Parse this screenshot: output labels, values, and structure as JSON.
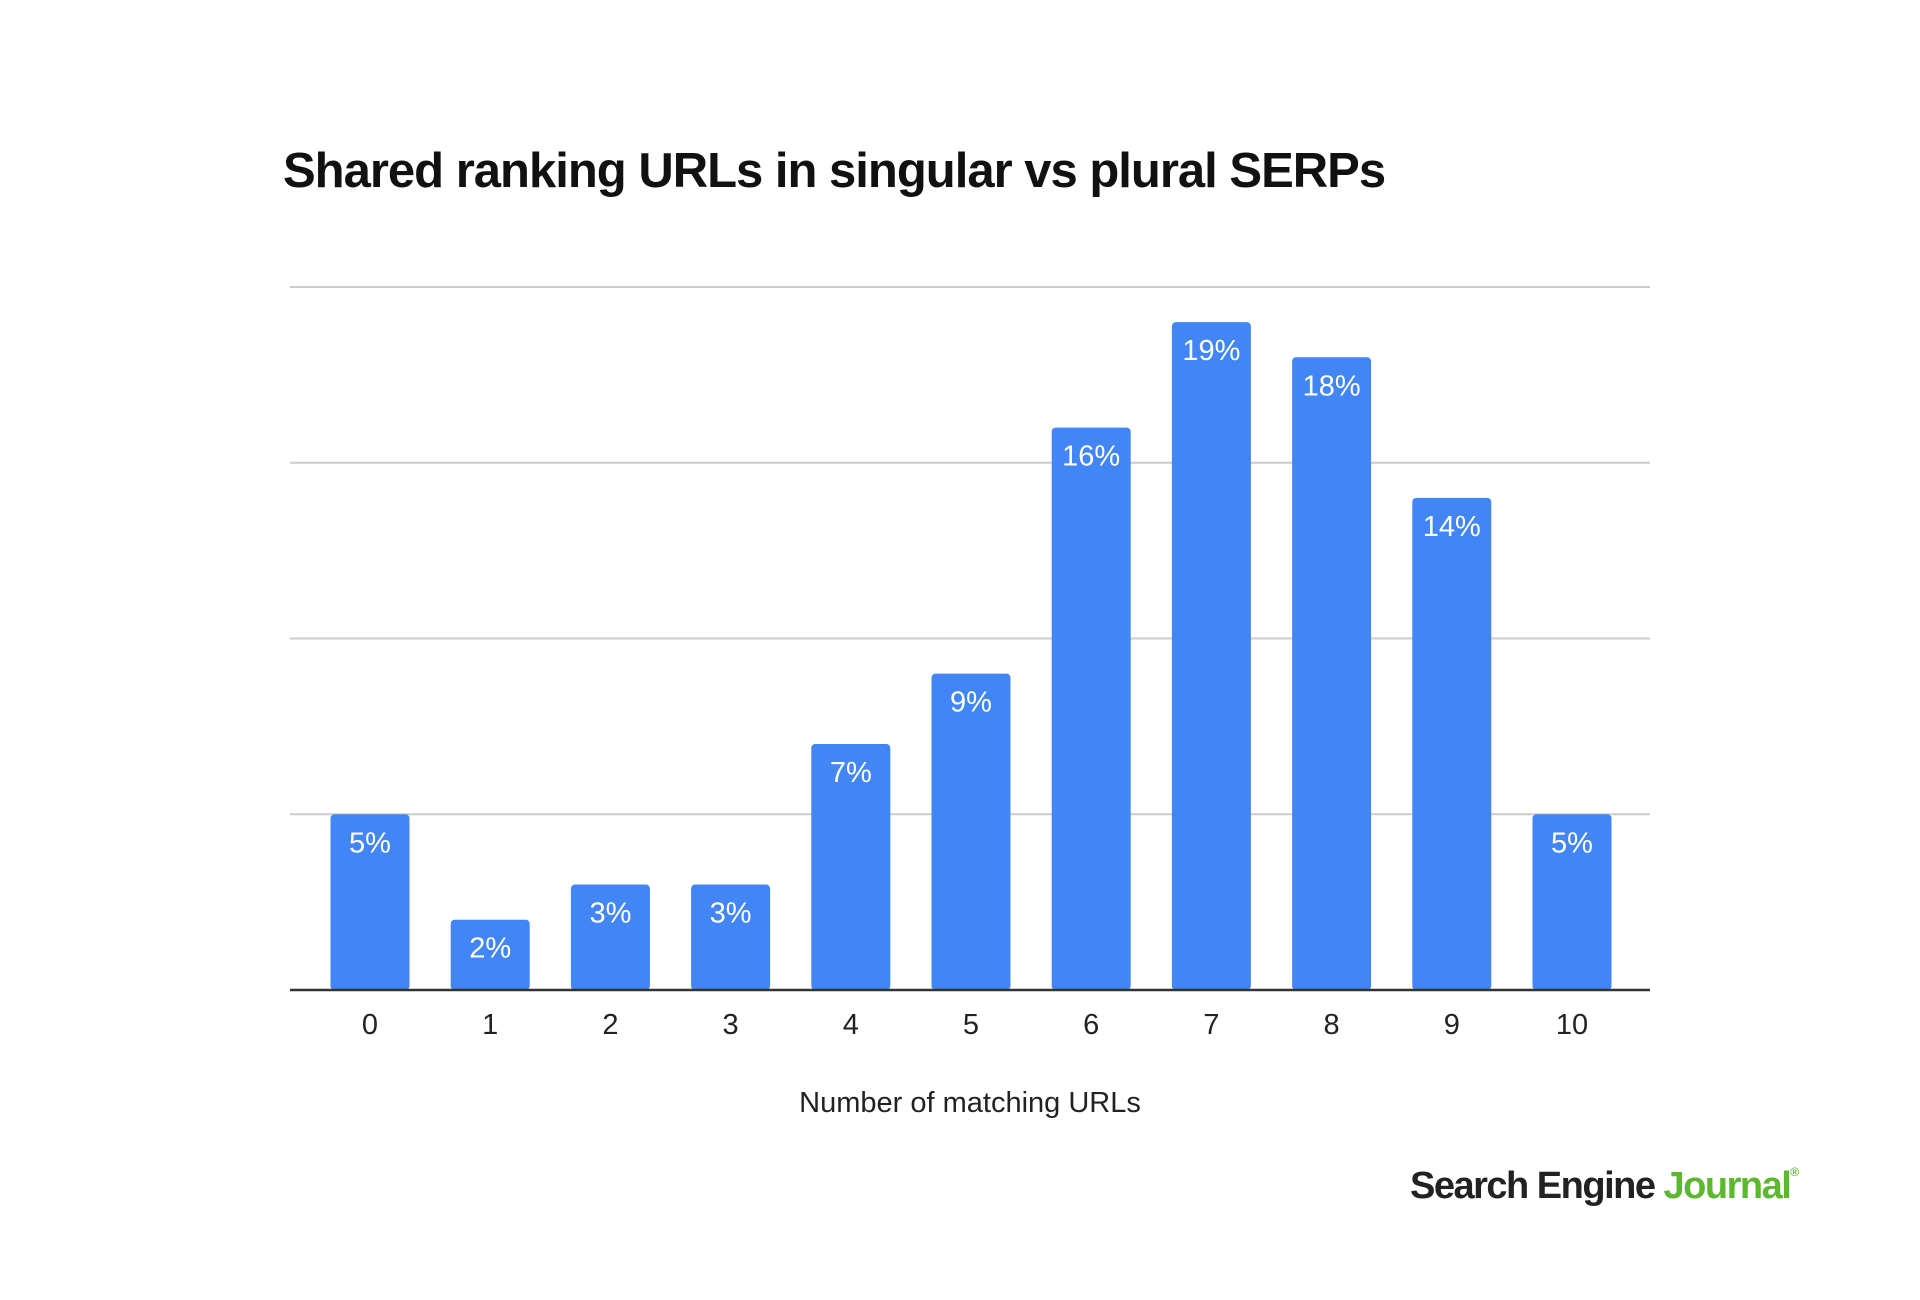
{
  "chart_data": {
    "type": "bar",
    "title": "Shared ranking URLs in singular vs plural SERPs",
    "xlabel": "Number of matching URLs",
    "ylabel": "",
    "categories": [
      "0",
      "1",
      "2",
      "3",
      "4",
      "5",
      "6",
      "7",
      "8",
      "9",
      "10"
    ],
    "values": [
      5,
      2,
      3,
      3,
      7,
      9,
      16,
      19,
      18,
      14,
      5
    ],
    "data_labels": [
      "5%",
      "2%",
      "3%",
      "3%",
      "7%",
      "9%",
      "16%",
      "19%",
      "18%",
      "14%",
      "5%"
    ],
    "unit": "%",
    "ylim": [
      0,
      20
    ],
    "gridlines": [
      0,
      5,
      10,
      15,
      20
    ],
    "y_tick_labels_shown": false,
    "grid": true,
    "legend": "none",
    "colors": {
      "bar": "#4285f4",
      "bar_label": "#ffffff",
      "grid": "#cccccc",
      "axis": "#333333",
      "text": "#222222"
    }
  },
  "branding": {
    "part1": "Search Engine ",
    "part2": "Journal",
    "mark": "®",
    "colors": {
      "part1": "#222222",
      "part2": "#5cb82e"
    }
  }
}
